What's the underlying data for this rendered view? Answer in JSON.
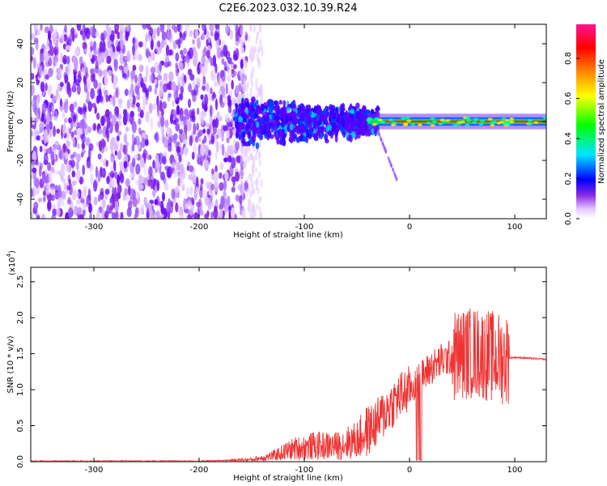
{
  "title": "C2E6.2023.032.10.39.R24",
  "chart_data": [
    {
      "type": "heatmap",
      "xlabel": "Height of straight line (km)",
      "ylabel": "Frequency (Hz)",
      "xlim": [
        -360,
        130
      ],
      "ylim": [
        -50,
        50
      ],
      "x_ticks": [
        -300,
        -200,
        -100,
        0,
        100
      ],
      "y_ticks": [
        -40,
        -20,
        0,
        20,
        40
      ],
      "colorbar": {
        "label": "Normalized spectral amplitude",
        "range": [
          0.0,
          0.97
        ],
        "ticks": [
          "0.0",
          "0.2",
          "0.4",
          "0.6",
          "0.8"
        ],
        "colors": [
          "#ffffff",
          "#e6c8ff",
          "#8a2be2",
          "#0000ff",
          "#00e5ff",
          "#00ff00",
          "#ffff00",
          "#ff8c00",
          "#ff0000",
          "#ff1493"
        ]
      },
      "regions": [
        {
          "x_range": [
            -360,
            -160
          ],
          "freq_range": [
            -50,
            50
          ],
          "amplitude": 0.12,
          "note": "broadband noise"
        },
        {
          "x_range": [
            -160,
            -30
          ],
          "freq_center": 0,
          "freq_halfwidth": 12,
          "amplitude": 0.25
        },
        {
          "x_range": [
            -30,
            130
          ],
          "freq_center": 0,
          "freq_halfwidth": 2,
          "amplitude": 0.9
        }
      ]
    },
    {
      "type": "line",
      "xlabel": "Height of straight line (km)",
      "ylabel": "SNR (10 * v/v)",
      "y_multiplier": "(x10",
      "y_multiplier_exp": "4",
      "xlim": [
        -360,
        130
      ],
      "ylim": [
        0,
        2.7
      ],
      "x_ticks": [
        -300,
        -200,
        -100,
        0,
        100
      ],
      "y_ticks": [
        "0.0",
        "0.5",
        "1.0",
        "1.5",
        "2.0",
        "2.5"
      ],
      "series": [
        {
          "color": "#ee3333",
          "x": [
            -360,
            -300,
            -250,
            -200,
            -170,
            -150,
            -130,
            -110,
            -90,
            -70,
            -50,
            -30,
            -20,
            -10,
            0,
            10,
            20,
            30,
            40,
            50,
            60,
            70,
            80,
            90,
            100,
            110,
            120,
            130
          ],
          "y": [
            0.01,
            0.01,
            0.01,
            0.01,
            0.02,
            0.03,
            0.08,
            0.18,
            0.22,
            0.22,
            0.3,
            0.55,
            0.75,
            0.9,
            1.0,
            1.15,
            1.3,
            1.4,
            1.45,
            1.5,
            1.52,
            1.5,
            1.45,
            1.43,
            1.45,
            1.44,
            1.43,
            1.42
          ]
        }
      ]
    }
  ]
}
